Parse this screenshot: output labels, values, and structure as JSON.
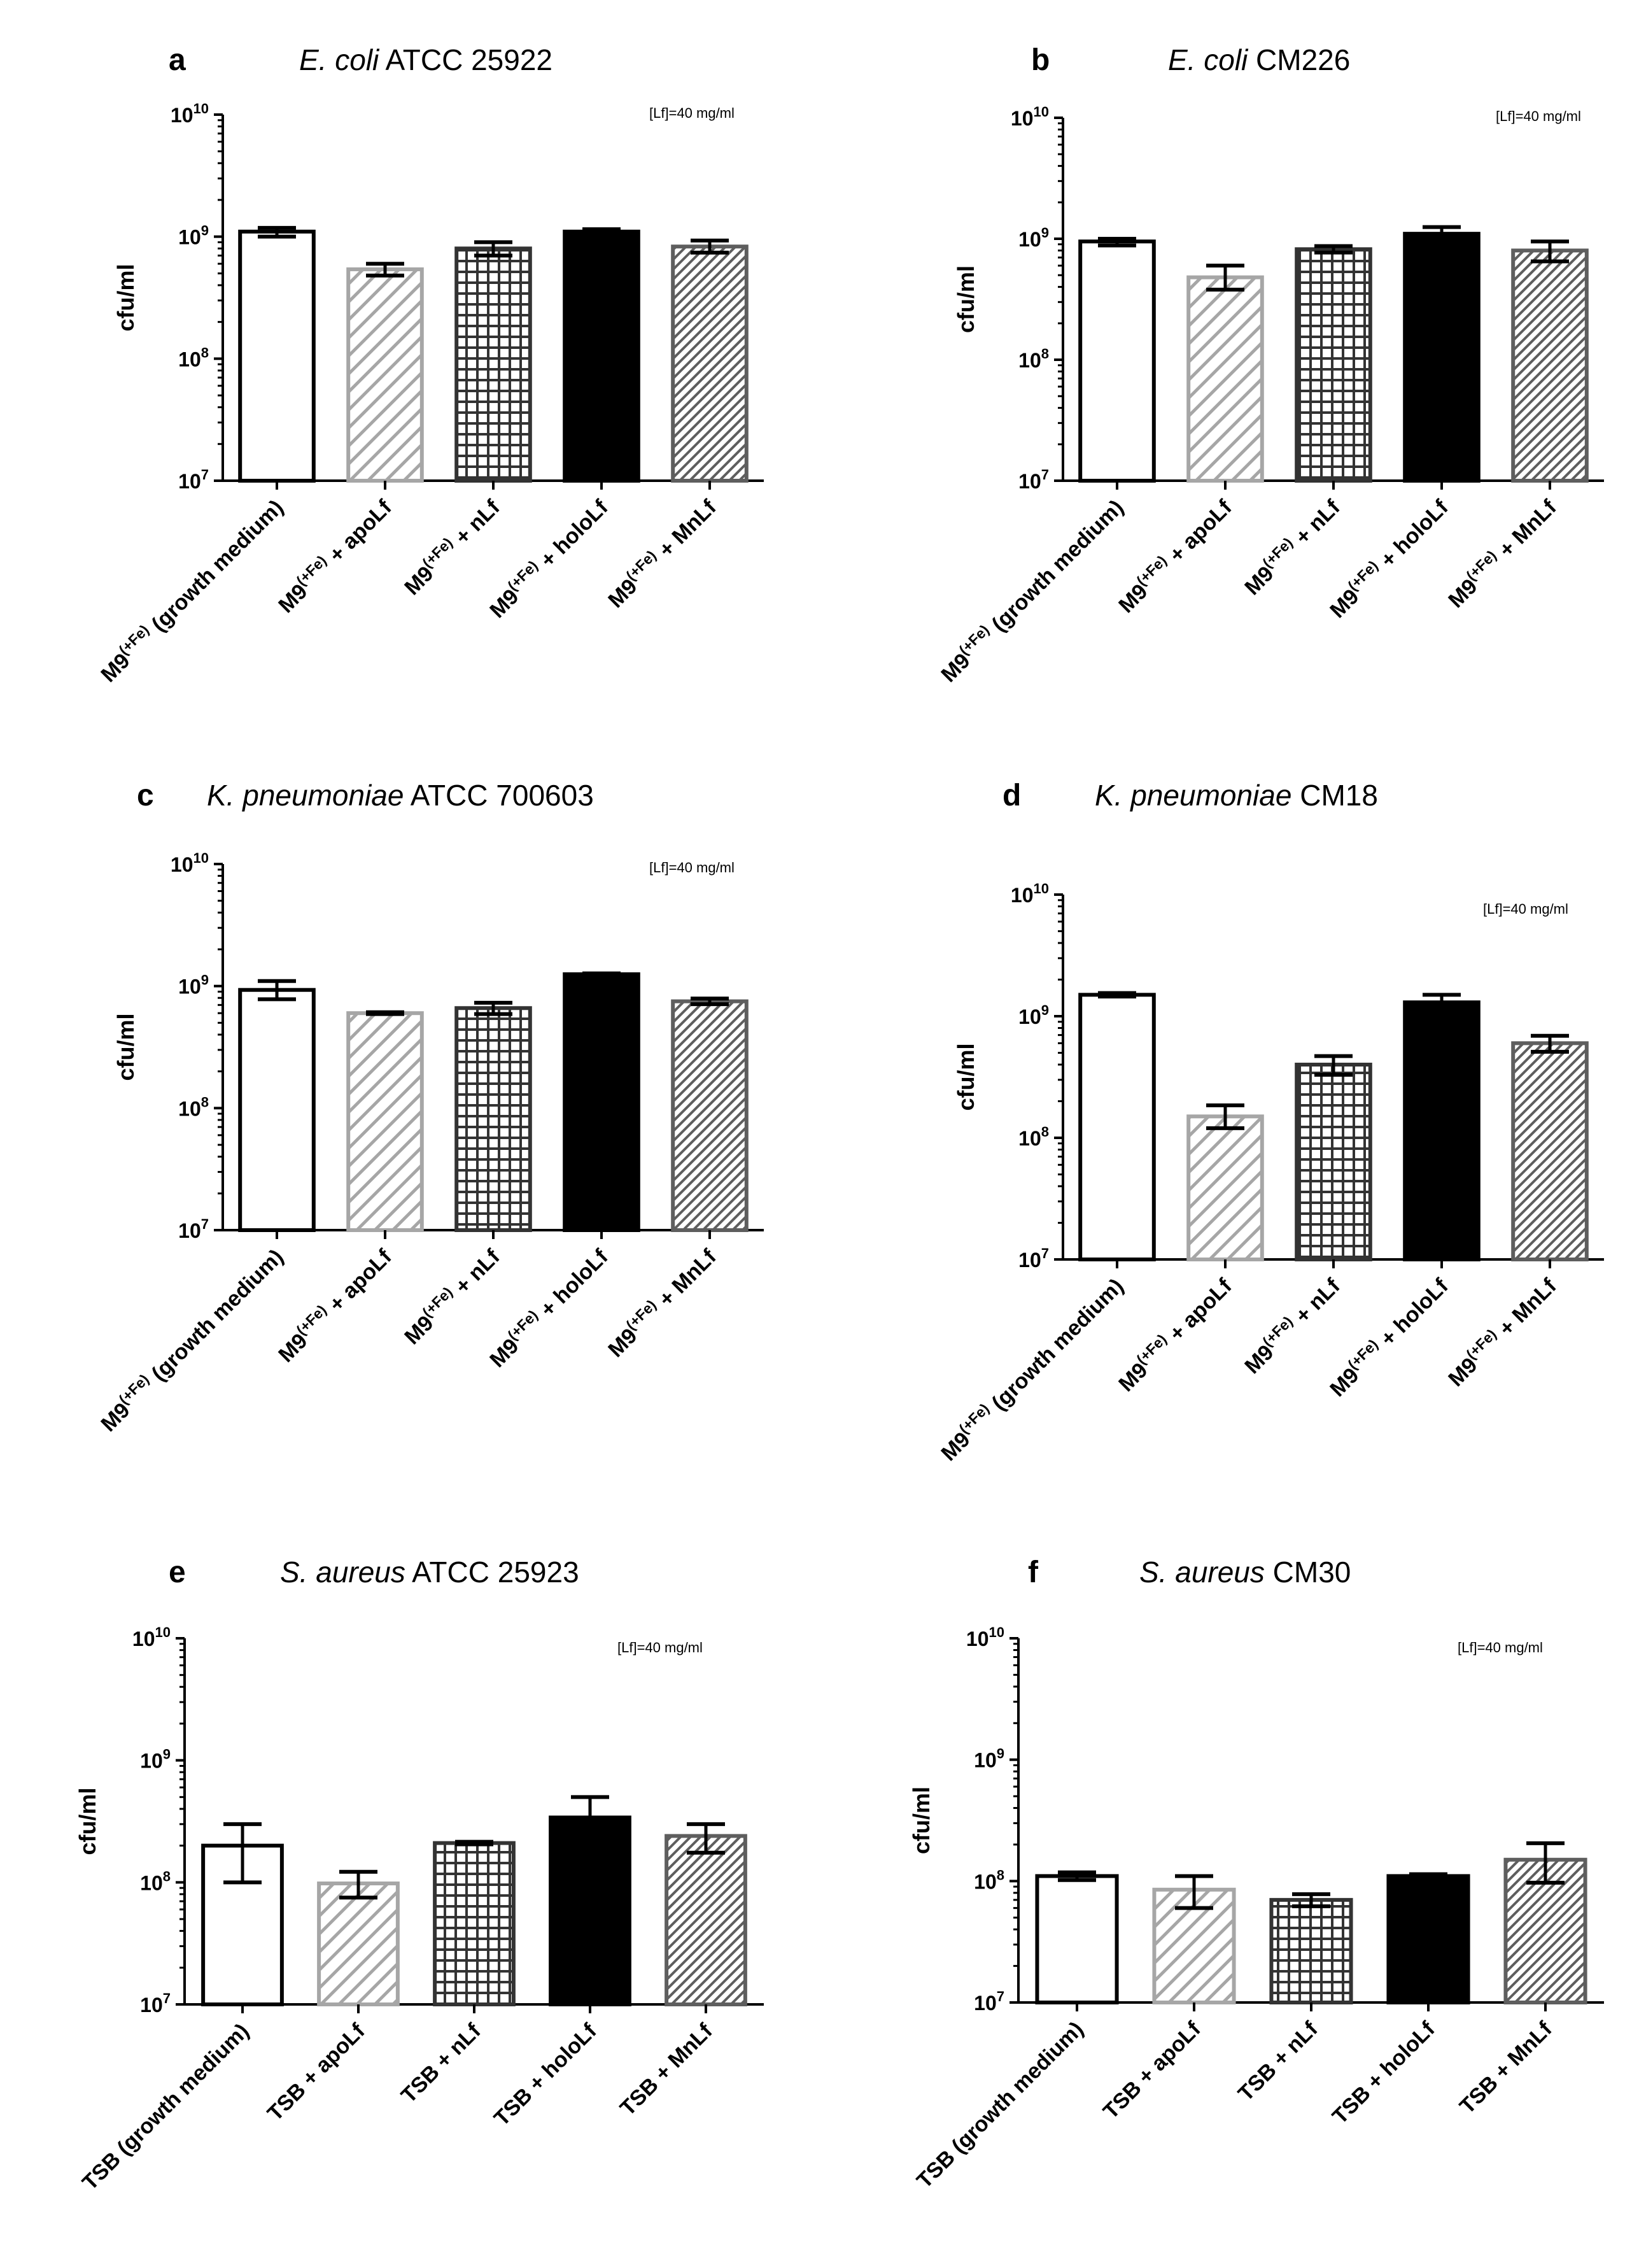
{
  "chart_data": [
    {
      "panel": "a",
      "type": "bar",
      "title_italic": "E. coli",
      "title_rest": "ATCC 25922",
      "ylabel": "cfu/ml",
      "yscale": "log",
      "ylim": [
        10000000,
        10000000000
      ],
      "yticks": [
        {
          "base": "10",
          "exp": "7"
        },
        {
          "base": "10",
          "exp": "8"
        },
        {
          "base": "10",
          "exp": "9"
        },
        {
          "base": "10",
          "exp": "10"
        }
      ],
      "note": "[Lf]=40 mg/ml",
      "categories": [
        {
          "base": "M9",
          "sup": "(+Fe)",
          "suffix": " (growth medium)"
        },
        {
          "base": "M9",
          "sup": "(+Fe)",
          "suffix": " + apoLf"
        },
        {
          "base": "M9",
          "sup": "(+Fe)",
          "suffix": " + nLf"
        },
        {
          "base": "M9",
          "sup": "(+Fe)",
          "suffix": " + holoLf"
        },
        {
          "base": "M9",
          "sup": "(+Fe)",
          "suffix": " + MnLf"
        }
      ],
      "values": [
        1100000000,
        540000000,
        800000000,
        1100000000,
        830000000
      ],
      "err_low": [
        1000000000,
        480000000,
        700000000,
        1050000000,
        740000000
      ],
      "err_high": [
        1180000000,
        600000000,
        900000000,
        1150000000,
        930000000
      ],
      "patterns": [
        "open",
        "diag-light",
        "grid",
        "solid",
        "hatch-dense"
      ]
    },
    {
      "panel": "b",
      "type": "bar",
      "title_italic": "E. coli",
      "title_rest": "CM226",
      "ylabel": "cfu/ml",
      "yscale": "log",
      "ylim": [
        10000000,
        10000000000
      ],
      "yticks": [
        {
          "base": "10",
          "exp": "7"
        },
        {
          "base": "10",
          "exp": "8"
        },
        {
          "base": "10",
          "exp": "9"
        },
        {
          "base": "10",
          "exp": "10"
        }
      ],
      "note": "[Lf]=40 mg/ml",
      "categories": [
        {
          "base": "M9",
          "sup": "(+Fe)",
          "suffix": " (growth medium)"
        },
        {
          "base": "M9",
          "sup": "(+Fe)",
          "suffix": " + apoLf"
        },
        {
          "base": "M9",
          "sup": "(+Fe)",
          "suffix": " + nLf"
        },
        {
          "base": "M9",
          "sup": "(+Fe)",
          "suffix": " + holoLf"
        },
        {
          "base": "M9",
          "sup": "(+Fe)",
          "suffix": " + MnLf"
        }
      ],
      "values": [
        950000000,
        480000000,
        820000000,
        1100000000,
        800000000
      ],
      "err_low": [
        880000000,
        380000000,
        770000000,
        1000000000,
        650000000
      ],
      "err_high": [
        1000000000,
        600000000,
        870000000,
        1250000000,
        950000000
      ],
      "patterns": [
        "open",
        "diag-light",
        "grid",
        "solid",
        "hatch-dense"
      ]
    },
    {
      "panel": "c",
      "type": "bar",
      "title_italic": "K. pneumoniae",
      "title_rest": "ATCC 700603",
      "ylabel": "cfu/ml",
      "yscale": "log",
      "ylim": [
        10000000,
        10000000000
      ],
      "yticks": [
        {
          "base": "10",
          "exp": "7"
        },
        {
          "base": "10",
          "exp": "8"
        },
        {
          "base": "10",
          "exp": "9"
        },
        {
          "base": "10",
          "exp": "10"
        }
      ],
      "note": "[Lf]=40 mg/ml",
      "categories": [
        {
          "base": "M9",
          "sup": "(+Fe)",
          "suffix": " (growth medium)"
        },
        {
          "base": "M9",
          "sup": "(+Fe)",
          "suffix": " + apoLf"
        },
        {
          "base": "M9",
          "sup": "(+Fe)",
          "suffix": " + nLf"
        },
        {
          "base": "M9",
          "sup": "(+Fe)",
          "suffix": " + holoLf"
        },
        {
          "base": "M9",
          "sup": "(+Fe)",
          "suffix": " + MnLf"
        }
      ],
      "values": [
        930000000,
        600000000,
        660000000,
        1250000000,
        750000000
      ],
      "err_low": [
        780000000,
        590000000,
        590000000,
        1230000000,
        710000000
      ],
      "err_high": [
        1100000000,
        610000000,
        730000000,
        1270000000,
        790000000
      ],
      "patterns": [
        "open",
        "diag-light",
        "grid",
        "solid",
        "hatch-dense"
      ]
    },
    {
      "panel": "d",
      "type": "bar",
      "title_italic": "K. pneumoniae",
      "title_rest": "CM18",
      "ylabel": "cfu/ml",
      "yscale": "log",
      "ylim": [
        10000000,
        10000000000
      ],
      "yticks": [
        {
          "base": "10",
          "exp": "7"
        },
        {
          "base": "10",
          "exp": "8"
        },
        {
          "base": "10",
          "exp": "9"
        },
        {
          "base": "10",
          "exp": "10"
        }
      ],
      "note": "[Lf]=40 mg/ml",
      "categories": [
        {
          "base": "M9",
          "sup": "(+Fe)",
          "suffix": " (growth medium)"
        },
        {
          "base": "M9",
          "sup": "(+Fe)",
          "suffix": " + apoLf"
        },
        {
          "base": "M9",
          "sup": "(+Fe)",
          "suffix": " + nLf"
        },
        {
          "base": "M9",
          "sup": "(+Fe)",
          "suffix": " + holoLf"
        },
        {
          "base": "M9",
          "sup": "(+Fe)",
          "suffix": " + MnLf"
        }
      ],
      "values": [
        1500000000,
        150000000,
        400000000,
        1300000000,
        600000000
      ],
      "err_low": [
        1450000000,
        120000000,
        330000000,
        1150000000,
        510000000
      ],
      "err_high": [
        1550000000,
        185000000,
        470000000,
        1500000000,
        690000000
      ],
      "patterns": [
        "open",
        "diag-light",
        "grid",
        "solid",
        "hatch-dense"
      ]
    },
    {
      "panel": "e",
      "type": "bar",
      "title_italic": "S. aureus",
      "title_rest": "ATCC 25923",
      "ylabel": "cfu/ml",
      "yscale": "log",
      "ylim": [
        10000000,
        10000000000
      ],
      "yticks": [
        {
          "base": "10",
          "exp": "7"
        },
        {
          "base": "10",
          "exp": "8"
        },
        {
          "base": "10",
          "exp": "9"
        },
        {
          "base": "10",
          "exp": "10"
        }
      ],
      "note": "[Lf]=40 mg/ml",
      "categories": [
        {
          "base": "TSB",
          "sup": "",
          "suffix": " (growth medium)"
        },
        {
          "base": "TSB",
          "sup": "",
          "suffix": " + apoLf"
        },
        {
          "base": "TSB",
          "sup": "",
          "suffix": " + nLf"
        },
        {
          "base": "TSB",
          "sup": "",
          "suffix": " + holoLf"
        },
        {
          "base": "TSB",
          "sup": "",
          "suffix": " + MnLf"
        }
      ],
      "values": [
        200000000,
        98000000,
        210000000,
        340000000,
        240000000
      ],
      "err_low": [
        100000000,
        75000000,
        205000000,
        190000000,
        175000000
      ],
      "err_high": [
        300000000,
        122000000,
        215000000,
        500000000,
        300000000
      ],
      "patterns": [
        "open",
        "diag-light",
        "grid",
        "solid",
        "hatch-dense"
      ]
    },
    {
      "panel": "f",
      "type": "bar",
      "title_italic": "S. aureus",
      "title_rest": "CM30",
      "ylabel": "cfu/ml",
      "yscale": "log",
      "ylim": [
        10000000,
        10000000000
      ],
      "yticks": [
        {
          "base": "10",
          "exp": "7"
        },
        {
          "base": "10",
          "exp": "8"
        },
        {
          "base": "10",
          "exp": "9"
        },
        {
          "base": "10",
          "exp": "10"
        }
      ],
      "note": "[Lf]=40 mg/ml",
      "categories": [
        {
          "base": "TSB",
          "sup": "",
          "suffix": " (growth medium)"
        },
        {
          "base": "TSB",
          "sup": "",
          "suffix": " + apoLf"
        },
        {
          "base": "TSB",
          "sup": "",
          "suffix": " + nLf"
        },
        {
          "base": "TSB",
          "sup": "",
          "suffix": " + holoLf"
        },
        {
          "base": "TSB",
          "sup": "",
          "suffix": " + MnLf"
        }
      ],
      "values": [
        110000000,
        85000000,
        70000000,
        110000000,
        150000000
      ],
      "err_low": [
        102000000,
        60000000,
        62000000,
        106000000,
        97000000
      ],
      "err_high": [
        118000000,
        110000000,
        78000000,
        114000000,
        205000000
      ],
      "patterns": [
        "open",
        "diag-light",
        "grid",
        "solid",
        "hatch-dense"
      ]
    }
  ]
}
